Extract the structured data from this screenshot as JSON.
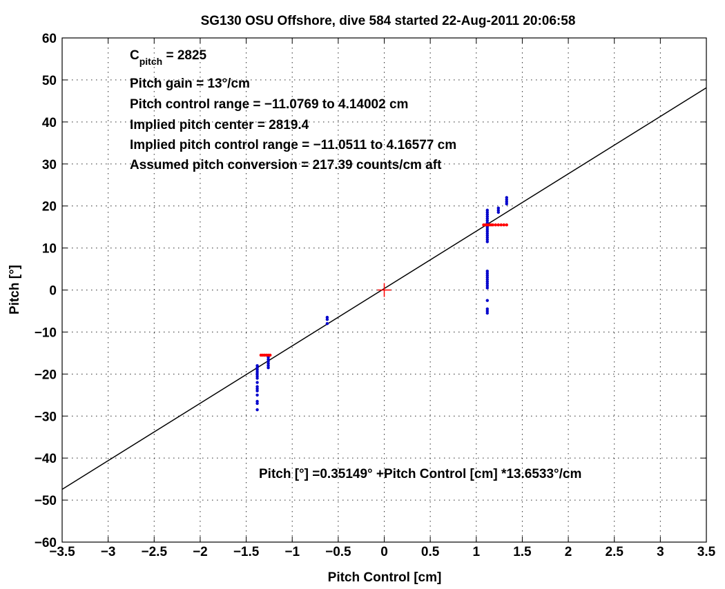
{
  "chart_data": {
    "type": "scatter",
    "title": "SG130 OSU Offshore, dive 584 started 22-Aug-2011 20:06:58",
    "xlabel": "Pitch Control [cm]",
    "ylabel": "Pitch [°]",
    "xlim": [
      -3.5,
      3.5
    ],
    "ylim": [
      -60,
      60
    ],
    "xticks": [
      -3.5,
      -3,
      -2.5,
      -2,
      -1.5,
      -1,
      -0.5,
      0,
      0.5,
      1,
      1.5,
      2,
      2.5,
      3,
      3.5
    ],
    "xtick_labels": [
      "−3.5",
      "−3",
      "−2.5",
      "−2",
      "−1.5",
      "−1",
      "−0.5",
      "0",
      "0.5",
      "1",
      "1.5",
      "2",
      "2.5",
      "3",
      "3.5"
    ],
    "yticks": [
      -60,
      -50,
      -40,
      -30,
      -20,
      -10,
      0,
      10,
      20,
      30,
      40,
      50,
      60
    ],
    "ytick_labels": [
      "−60",
      "−50",
      "−40",
      "−30",
      "−20",
      "−10",
      "0",
      "10",
      "20",
      "30",
      "40",
      "50",
      "60"
    ],
    "grid": true,
    "annotations": {
      "cpitch_main": "C",
      "cpitch_sub": "pitch",
      "cpitch_value": " = 2825",
      "gain": "Pitch gain = 13°/cm",
      "range": "Pitch control range = −11.0769 to 4.14002 cm",
      "center": "Implied pitch center = 2819.4",
      "implied_range": "Implied pitch control range = −11.0511 to 4.16577 cm",
      "conversion": "Assumed pitch conversion = 217.39 counts/cm aft",
      "fit": "Pitch [°] =0.35149° +Pitch Control [cm] *13.6533°/cm"
    },
    "fit_line": {
      "intercept": 0.35149,
      "slope": 13.6533,
      "color": "#000000"
    },
    "center_marker": {
      "x": 0,
      "y": 0,
      "color": "#ff0000"
    },
    "series": [
      {
        "color": "#0000cc",
        "points": [
          [
            -1.38,
            -18.0
          ],
          [
            -1.38,
            -18.5
          ],
          [
            -1.38,
            -19.0
          ],
          [
            -1.38,
            -19.5
          ],
          [
            -1.38,
            -20.0
          ],
          [
            -1.38,
            -20.5
          ],
          [
            -1.38,
            -21.0
          ],
          [
            -1.38,
            -22.0
          ],
          [
            -1.38,
            -23.0
          ],
          [
            -1.38,
            -23.5
          ],
          [
            -1.38,
            -24.0
          ],
          [
            -1.38,
            -25.0
          ],
          [
            -1.38,
            -26.5
          ],
          [
            -1.38,
            -27.0
          ],
          [
            -1.38,
            -28.5
          ],
          [
            -1.26,
            -16.0
          ],
          [
            -1.26,
            -16.5
          ],
          [
            -1.26,
            -17.0
          ],
          [
            -1.26,
            -17.5
          ],
          [
            -1.26,
            -18.0
          ],
          [
            -1.26,
            -18.5
          ],
          [
            -0.62,
            -6.5
          ],
          [
            -0.62,
            -7.0
          ],
          [
            -0.62,
            -8.0
          ],
          [
            1.12,
            11.5
          ],
          [
            1.12,
            12.0
          ],
          [
            1.12,
            12.5
          ],
          [
            1.12,
            13.0
          ],
          [
            1.12,
            13.5
          ],
          [
            1.12,
            14.0
          ],
          [
            1.12,
            14.5
          ],
          [
            1.12,
            15.0
          ],
          [
            1.12,
            15.5
          ],
          [
            1.12,
            16.0
          ],
          [
            1.12,
            16.5
          ],
          [
            1.12,
            17.0
          ],
          [
            1.12,
            17.5
          ],
          [
            1.12,
            18.0
          ],
          [
            1.12,
            18.5
          ],
          [
            1.12,
            19.0
          ],
          [
            1.12,
            4.5
          ],
          [
            1.12,
            4.0
          ],
          [
            1.12,
            3.5
          ],
          [
            1.12,
            3.0
          ],
          [
            1.12,
            2.5
          ],
          [
            1.12,
            2.0
          ],
          [
            1.12,
            1.5
          ],
          [
            1.12,
            1.0
          ],
          [
            1.12,
            0.5
          ],
          [
            1.12,
            -2.5
          ],
          [
            1.12,
            -4.5
          ],
          [
            1.12,
            -5.0
          ],
          [
            1.12,
            -5.5
          ],
          [
            1.24,
            18.5
          ],
          [
            1.24,
            19.0
          ],
          [
            1.24,
            19.5
          ],
          [
            1.33,
            20.5
          ],
          [
            1.33,
            21.0
          ],
          [
            1.33,
            21.5
          ],
          [
            1.33,
            22.0
          ]
        ]
      },
      {
        "color": "#ff0000",
        "points": [
          [
            -1.34,
            -15.5
          ],
          [
            -1.32,
            -15.5
          ],
          [
            -1.3,
            -15.5
          ],
          [
            -1.28,
            -15.5
          ],
          [
            -1.26,
            -15.5
          ],
          [
            -1.24,
            -15.5
          ],
          [
            1.08,
            15.5
          ],
          [
            1.1,
            15.5
          ],
          [
            1.12,
            15.5
          ],
          [
            1.14,
            15.5
          ],
          [
            1.16,
            15.5
          ],
          [
            1.18,
            15.5
          ],
          [
            1.21,
            15.5
          ],
          [
            1.24,
            15.5
          ],
          [
            1.27,
            15.5
          ],
          [
            1.3,
            15.5
          ],
          [
            1.33,
            15.5
          ]
        ]
      }
    ]
  }
}
